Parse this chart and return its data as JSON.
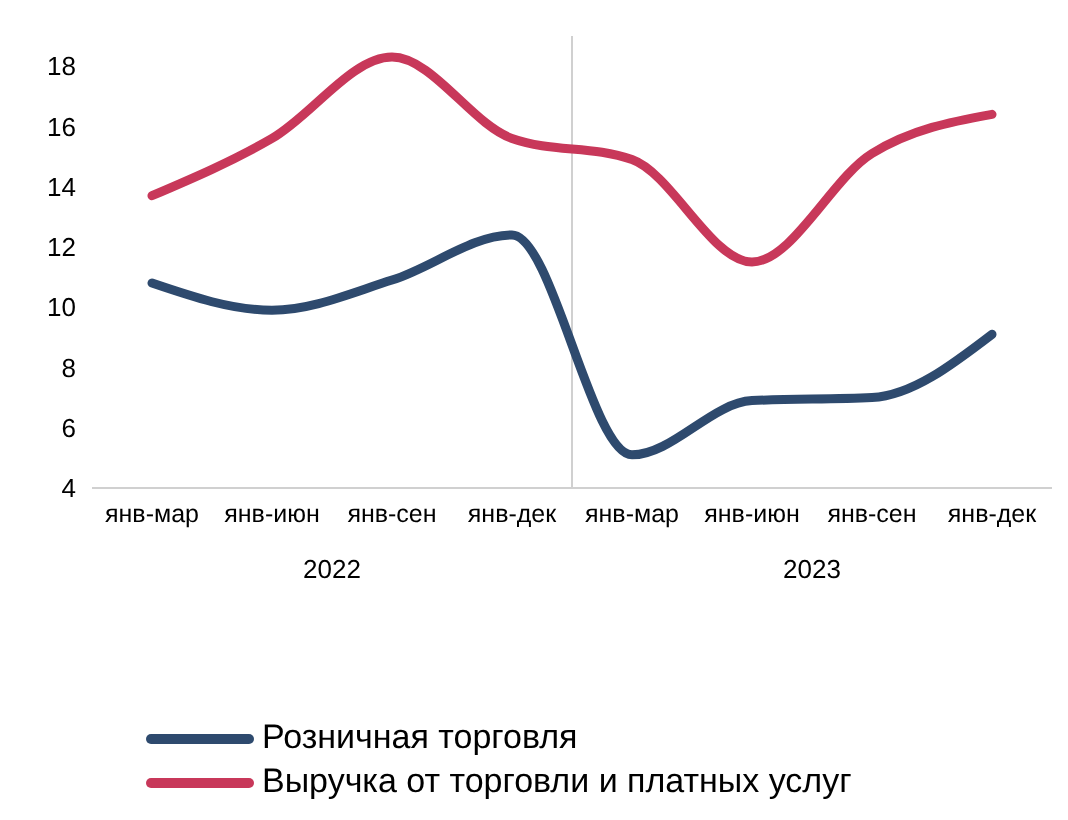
{
  "chart_data": {
    "type": "line",
    "categories": [
      "янв-мар",
      "янв-июн",
      "янв-сен",
      "янв-дек",
      "янв-мар",
      "янв-июн",
      "янв-сен",
      "янв-дек"
    ],
    "series": [
      {
        "name": "Розничная торговля",
        "color": "#2e4a6e",
        "values": [
          10.8,
          9.9,
          10.9,
          12.4,
          5.1,
          6.9,
          7.0,
          9.1
        ]
      },
      {
        "name": "Выручка от торговли и платных услуг",
        "color": "#c8385a",
        "values": [
          13.7,
          15.6,
          18.3,
          15.6,
          14.9,
          11.5,
          15.1,
          16.4
        ]
      }
    ],
    "annotations": [
      "2022",
      "2023"
    ],
    "ylim": [
      4,
      19
    ],
    "yticks": [
      4,
      6,
      8,
      10,
      12,
      14,
      16,
      18
    ],
    "grid": false,
    "legend": "bottom",
    "marker": "none",
    "line_style": "solid"
  }
}
